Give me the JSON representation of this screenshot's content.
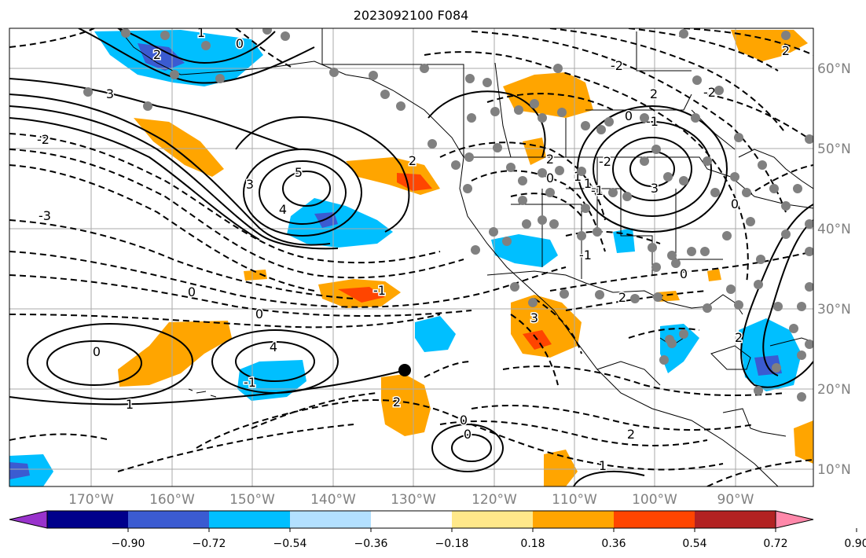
{
  "title": "2023092100 F084",
  "longitude_labels": [
    "170°W",
    "160°W",
    "150°W",
    "140°W",
    "130°W",
    "120°W",
    "110°W",
    "100°W",
    "90°W"
  ],
  "latitude_labels": [
    "60°N",
    "50°N",
    "40°N",
    "30°N",
    "20°N",
    "10°N"
  ],
  "colorbar": {
    "tick_labels": [
      "−0.90",
      "−0.72",
      "−0.54",
      "−0.36",
      "−0.18",
      "0.18",
      "0.36",
      "0.54",
      "0.72",
      "0.90"
    ],
    "colors": [
      "#9933cc",
      "#00008b",
      "#3b5bd1",
      "#00bfff",
      "#b3e0ff",
      "#ffffff",
      "#ffe88a",
      "#ffa500",
      "#ff4500",
      "#b22222",
      "#ff88aa"
    ]
  },
  "contour_labels": [
    "1",
    "0",
    "3",
    "2",
    "-2",
    "-3",
    "5",
    "4",
    "3",
    "2",
    "0",
    "-1",
    "-2",
    "1",
    "3",
    "-1",
    "0",
    "1",
    "2",
    "-2",
    "2",
    "0",
    "-1",
    "0",
    "2",
    "-2",
    "2",
    "-1",
    "3",
    "0",
    "-1",
    "0",
    "4",
    "0",
    "1",
    "0",
    "0",
    "2",
    "2",
    "1",
    "2"
  ],
  "colors": {
    "positive_shading": "#ffa500",
    "strong_positive": "#ff4500",
    "negative_shading": "#00bfff",
    "strong_negative": "#3b5bd1",
    "station_dots": "#808080",
    "gridlines": "#aaaaaa"
  }
}
